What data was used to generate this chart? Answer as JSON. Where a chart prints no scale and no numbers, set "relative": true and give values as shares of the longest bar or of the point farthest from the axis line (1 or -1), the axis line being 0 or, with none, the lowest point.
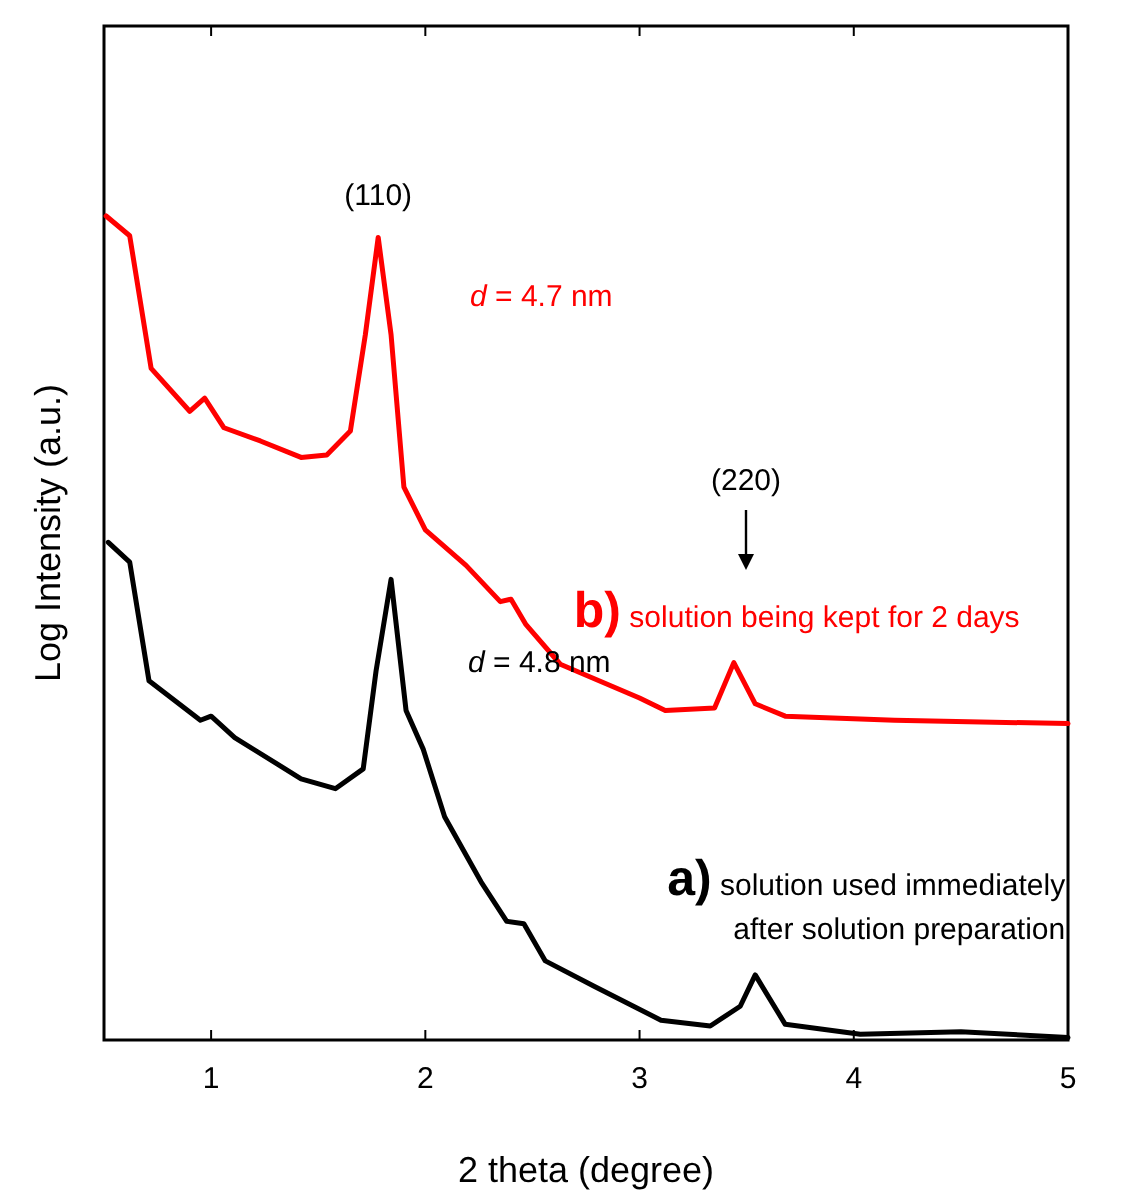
{
  "chart_data": {
    "type": "line",
    "relative": true,
    "xlabel": "2 theta (degree)",
    "ylabel": "Log Intensity (a.u.)",
    "xlim": [
      0.5,
      5
    ],
    "xticks": [
      1,
      2,
      3,
      4,
      5
    ],
    "grid": false,
    "marker": "none",
    "line_style": "solid",
    "series": [
      {
        "color": "#000000",
        "x": [
          0.52,
          0.62,
          0.71,
          0.95,
          1.0,
          1.11,
          1.42,
          1.58,
          1.71,
          1.77,
          1.84,
          1.91,
          1.99,
          2.09,
          2.26,
          2.38,
          2.46,
          2.56,
          2.79,
          3.1,
          3.33,
          3.47,
          3.54,
          3.68,
          4.03,
          4.5,
          5.0
        ],
        "values": [
          0.604,
          0.58,
          0.436,
          0.388,
          0.393,
          0.367,
          0.317,
          0.305,
          0.329,
          0.448,
          0.559,
          0.4,
          0.353,
          0.271,
          0.192,
          0.144,
          0.141,
          0.096,
          0.065,
          0.024,
          0.017,
          0.041,
          0.079,
          0.019,
          0.007,
          0.01,
          0.003
        ]
      },
      {
        "color": "#ff0000",
        "x": [
          0.51,
          0.62,
          0.72,
          0.9,
          0.97,
          1.06,
          1.23,
          1.42,
          1.54,
          1.65,
          1.72,
          1.78,
          1.84,
          1.9,
          2.0,
          2.19,
          2.35,
          2.4,
          2.47,
          2.63,
          3.0,
          3.12,
          3.35,
          3.44,
          3.54,
          3.68,
          4.19,
          5.0
        ],
        "values": [
          1.0,
          0.976,
          0.815,
          0.763,
          0.779,
          0.743,
          0.727,
          0.707,
          0.71,
          0.739,
          0.856,
          0.974,
          0.856,
          0.671,
          0.619,
          0.576,
          0.532,
          0.535,
          0.504,
          0.456,
          0.415,
          0.4,
          0.403,
          0.458,
          0.408,
          0.393,
          0.388,
          0.384
        ]
      }
    ],
    "annotations": [
      {
        "text": "(110)",
        "x": 1.78,
        "y": 0.974
      },
      "d = 4.7 nm",
      "(220)",
      {
        "text": "b) solution being kept for 2 days",
        "x": 3.44,
        "y": 0.458
      },
      "d = 4.8 nm",
      {
        "text": "a) solution used immediately\nafter solution preparation",
        "x": 3.54,
        "y": 0.079
      }
    ]
  }
}
